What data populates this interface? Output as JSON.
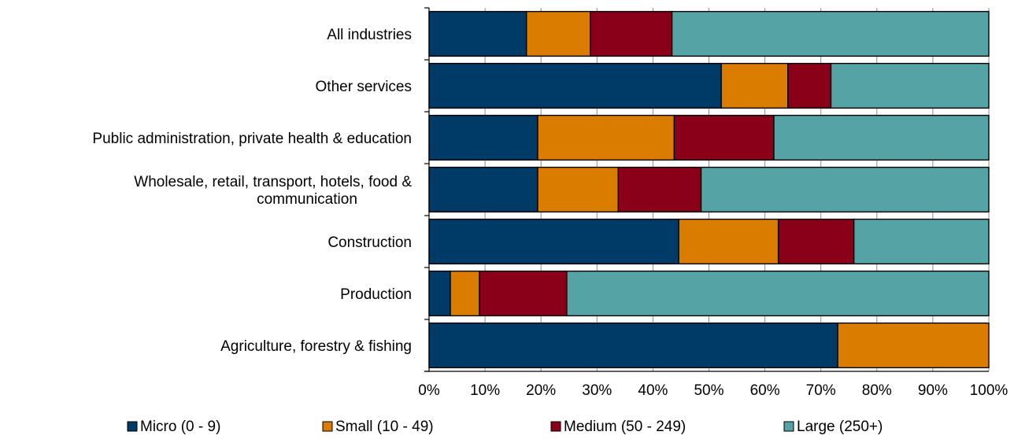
{
  "chart_data": {
    "type": "bar",
    "orientation": "horizontal",
    "stacked": true,
    "percent": true,
    "categories": [
      [
        "All industries"
      ],
      [
        "Other services"
      ],
      [
        "Public administration, private health & education"
      ],
      [
        "Wholesale, retail, transport, hotels, food &",
        "communication"
      ],
      [
        "Construction"
      ],
      [
        "Production"
      ],
      [
        "Agriculture, forestry & fishing"
      ]
    ],
    "series": [
      {
        "name": "Micro (0 - 9)",
        "color": "#003a66",
        "values": [
          17.4,
          52.2,
          19.4,
          19.4,
          44.6,
          3.8,
          73.0
        ]
      },
      {
        "name": "Small (10 - 49)",
        "color": "#d97c00",
        "values": [
          11.4,
          11.9,
          24.4,
          14.4,
          17.8,
          5.2,
          27.0
        ]
      },
      {
        "name": "Medium (50 - 249)",
        "color": "#8a0019",
        "values": [
          14.6,
          7.7,
          17.8,
          14.8,
          13.5,
          15.6,
          0
        ]
      },
      {
        "name": "Large (250+)",
        "color": "#56a3a6",
        "values": [
          56.6,
          28.2,
          38.4,
          51.4,
          24.1,
          75.4,
          0
        ]
      }
    ],
    "xlim": [
      0,
      100
    ],
    "xticks": [
      "0%",
      "10%",
      "20%",
      "30%",
      "40%",
      "50%",
      "60%",
      "70%",
      "80%",
      "90%",
      "100%"
    ],
    "xlabel": "",
    "ylabel": "",
    "title": "",
    "grid": true,
    "legend_position": "bottom"
  }
}
